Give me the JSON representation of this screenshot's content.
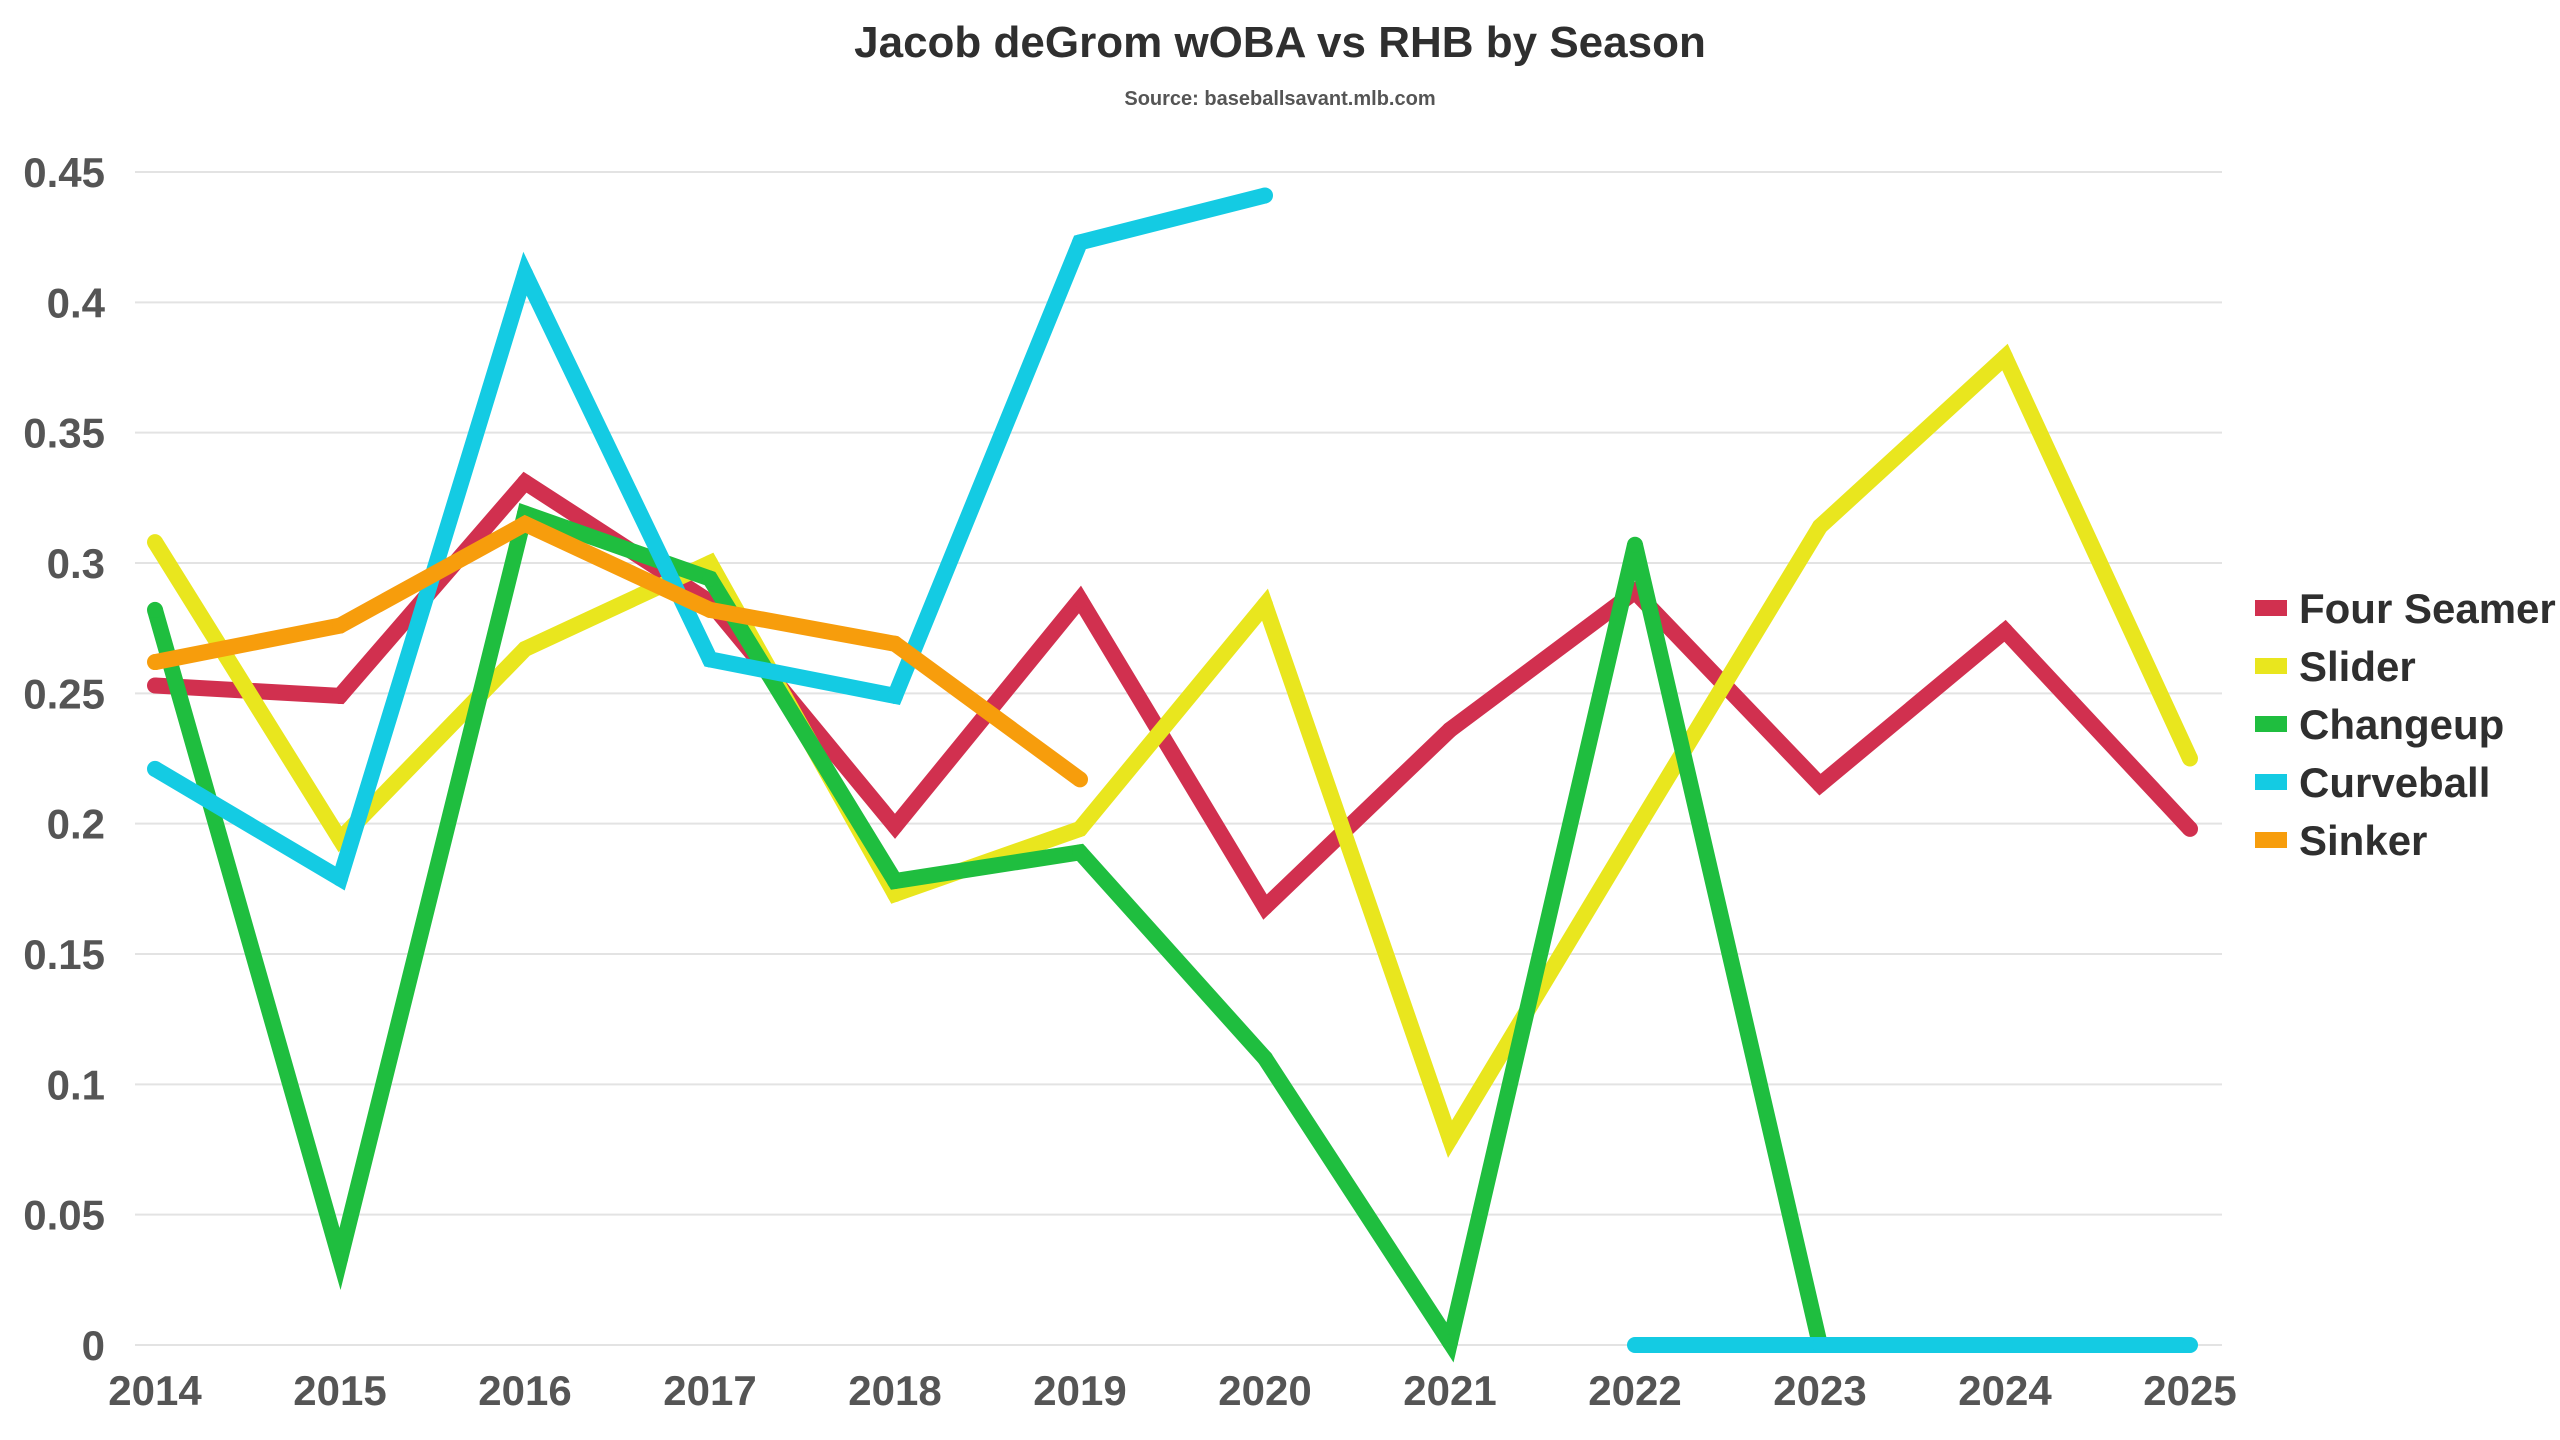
{
  "chart_data": {
    "type": "line",
    "title": "Jacob deGrom wOBA vs RHB by Season",
    "subtitle": "Source: baseballsavant.mlb.com",
    "xlabel": "",
    "ylabel": "",
    "x": [
      2014,
      2015,
      2016,
      2017,
      2018,
      2019,
      2020,
      2021,
      2022,
      2023,
      2024,
      2025
    ],
    "x_tick_labels": [
      "2014",
      "2015",
      "2016",
      "2017",
      "2018",
      "2019",
      "2020",
      "2021",
      "2022",
      "2023",
      "2024",
      "2025"
    ],
    "ylim": [
      0,
      0.45
    ],
    "y_ticks": [
      0,
      0.05,
      0.1,
      0.15,
      0.2,
      0.25,
      0.3,
      0.35,
      0.4,
      0.45
    ],
    "y_tick_labels": [
      "0",
      "0.05",
      "0.1",
      "0.15",
      "0.2",
      "0.25",
      "0.3",
      "0.35",
      "0.4",
      "0.45"
    ],
    "grid": true,
    "legend_position": "right",
    "series": [
      {
        "name": "Four Seamer",
        "color": "#d1304f",
        "values": [
          0.253,
          0.249,
          0.331,
          0.285,
          0.199,
          0.286,
          0.168,
          0.236,
          0.289,
          0.215,
          0.274,
          0.198
        ]
      },
      {
        "name": "Slider",
        "color": "#e9e61e",
        "values": [
          0.308,
          0.194,
          0.267,
          0.3,
          0.173,
          0.198,
          0.284,
          0.079,
          0.197,
          0.314,
          0.379,
          0.225
        ]
      },
      {
        "name": "Changeup",
        "color": "#1fbe3f",
        "values": [
          0.282,
          0.033,
          0.319,
          0.294,
          0.178,
          0.189,
          0.11,
          0.001,
          0.307,
          0.0,
          null,
          null
        ]
      },
      {
        "name": "Curveball",
        "color": "#14cbe3",
        "values": [
          0.221,
          0.179,
          0.411,
          0.263,
          0.249,
          0.423,
          0.441,
          null,
          0.0,
          0.0,
          0.0,
          0.0
        ]
      },
      {
        "name": "Sinker",
        "color": "#f79d0c",
        "values": [
          0.262,
          0.276,
          0.315,
          0.282,
          0.269,
          0.217,
          null,
          null,
          null,
          null,
          null,
          null
        ]
      }
    ]
  }
}
